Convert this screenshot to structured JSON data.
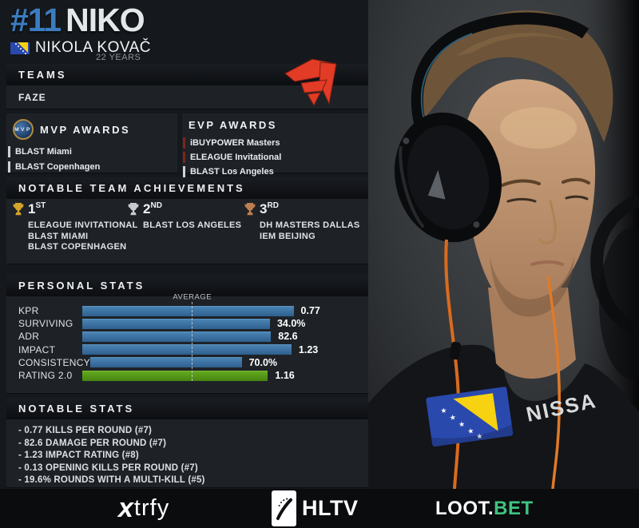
{
  "header": {
    "rank": "#11",
    "nickname": "NIKO",
    "flag_icon": "bosnia-herzegovina-flag",
    "real_name": "NIKOLA KOVAČ",
    "age": "22 YEARS"
  },
  "teams": {
    "title": "TEAMS",
    "items": [
      {
        "name": "FAZE"
      }
    ],
    "logo_icon": "faze-clan-logo"
  },
  "mvp_awards": {
    "title": "MVP AWARDS",
    "icon": "mvp-medal",
    "items": [
      {
        "label": "BLAST Miami",
        "accent": "gray"
      },
      {
        "label": "BLAST Copenhagen",
        "accent": "gray"
      }
    ]
  },
  "evp_awards": {
    "title": "EVP AWARDS",
    "items": [
      {
        "label": "iBUYPOWER Masters",
        "accent": "red"
      },
      {
        "label": "ELEAGUE Invitational",
        "accent": "red"
      },
      {
        "label": "BLAST Los Angeles",
        "accent": "gray"
      }
    ]
  },
  "achievements": {
    "title": "NOTABLE TEAM ACHIEVEMENTS",
    "placements": [
      {
        "rank": "1",
        "suffix": "ST",
        "trophy": "gold",
        "events": [
          "ELEAGUE INVITATIONAL",
          "BLAST MIAMI",
          "BLAST COPENHAGEN"
        ]
      },
      {
        "rank": "2",
        "suffix": "ND",
        "trophy": "silver",
        "events": [
          "BLAST LOS ANGELES"
        ]
      },
      {
        "rank": "3",
        "suffix": "RD",
        "trophy": "bronze",
        "events": [
          "DH MASTERS DALLAS",
          "IEM BEIJING"
        ]
      }
    ]
  },
  "chart_data": {
    "type": "bar",
    "title": "PERSONAL STATS",
    "average_label": "AVERAGE",
    "average_line_pct": 39.3,
    "legend_position": "none",
    "grid": "average-dashed-line-only",
    "rows": [
      {
        "label": "KPR",
        "value": "0.77",
        "width_pct": 61.8,
        "color": "blue"
      },
      {
        "label": "SURVIVING",
        "value": "34.0%",
        "width_pct": 54.9,
        "color": "blue"
      },
      {
        "label": "ADR",
        "value": "82.6",
        "width_pct": 55.2,
        "color": "blue"
      },
      {
        "label": "IMPACT",
        "value": "1.23",
        "width_pct": 61.2,
        "color": "blue"
      },
      {
        "label": "CONSISTENCY",
        "value": "70.0%",
        "width_pct": 44.3,
        "color": "blue"
      },
      {
        "label": "RATING 2.0",
        "value": "1.16",
        "width_pct": 54.3,
        "color": "green"
      }
    ]
  },
  "notable_stats": {
    "title": "NOTABLE STATS",
    "items": [
      "- 0.77 KILLS PER ROUND (#7)",
      "- 82.6 DAMAGE PER ROUND (#7)",
      "- 1.23 IMPACT RATING (#8)",
      "- 0.13 OPENING KILLS PER ROUND (#7)",
      "- 19.6% ROUNDS WITH A MULTI-KILL (#5)"
    ]
  },
  "photo": {
    "jersey_text": "NISSA",
    "flag_patch_icon": "bosnia-herzegovina-flag-patch"
  },
  "footer": {
    "sponsors": [
      {
        "name": "xtrfy",
        "x": "x",
        "rest": "trfy"
      },
      {
        "name": "HLTV",
        "label": "HLTV",
        "icon": "hltv-logo"
      },
      {
        "name": "LOOT.BET",
        "white": "LOOT.",
        "green": "BET"
      }
    ]
  },
  "colors": {
    "accent_blue": "#3b7cc0",
    "bar_blue": "#3f79ab",
    "bar_green": "#55a015",
    "faze_red": "#e23b26",
    "lootbet_green": "#3fc380",
    "evp_accent_red": "#7d241a",
    "award_accent_gray": "#cfd3d8",
    "trophy_gold": "#d4a42c",
    "trophy_silver": "#c6cbd0",
    "trophy_bronze": "#bf7d4e",
    "panel_bg": "#1e2227",
    "page_bg": "#15181c",
    "footer_bg": "#0a0c0e"
  }
}
